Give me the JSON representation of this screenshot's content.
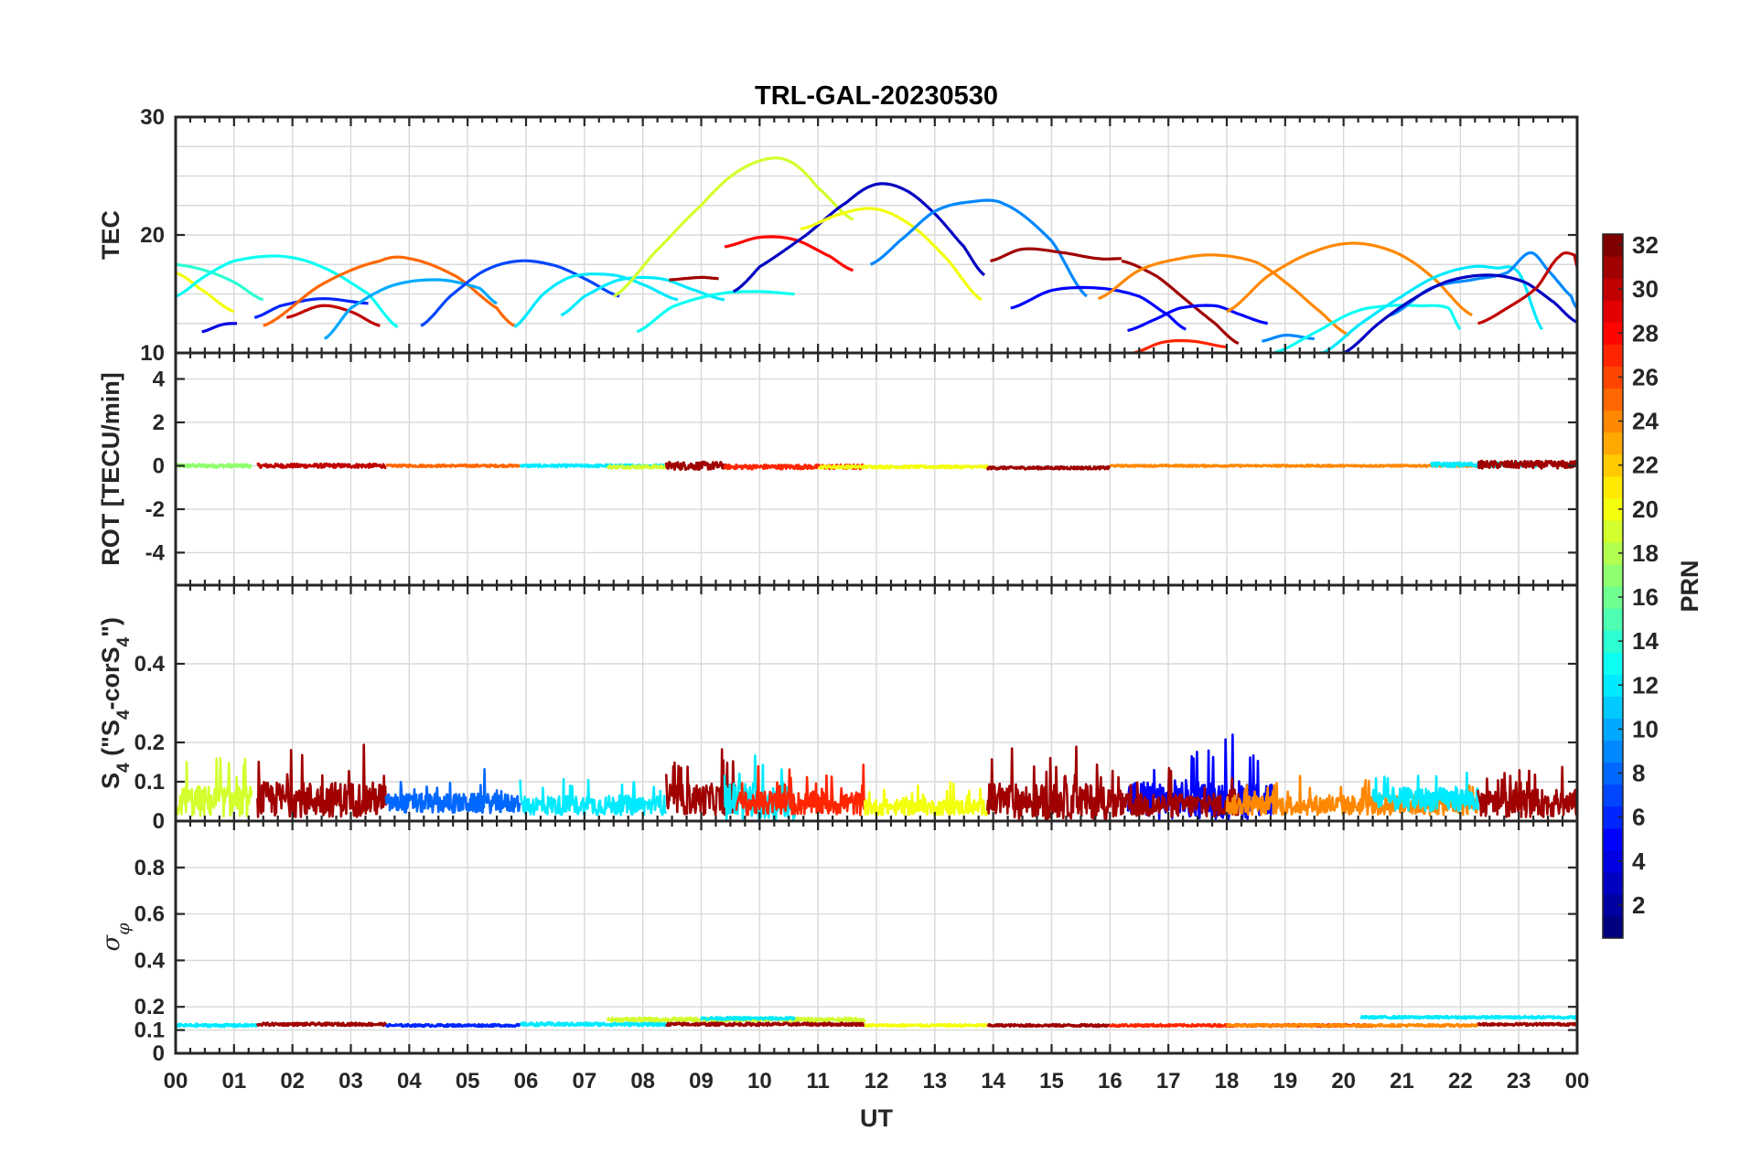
{
  "chart_data": {
    "type": "line",
    "title": "TRL-GAL-20230530",
    "xlabel": "UT",
    "x_tick_labels": [
      "00",
      "01",
      "02",
      "03",
      "04",
      "05",
      "06",
      "07",
      "08",
      "09",
      "10",
      "11",
      "12",
      "13",
      "14",
      "15",
      "16",
      "17",
      "18",
      "19",
      "20",
      "21",
      "22",
      "23",
      "00"
    ],
    "xlim_hours": [
      0,
      24
    ],
    "colorbar": {
      "label": "PRN",
      "range": [
        1,
        32
      ],
      "tick_labels": [
        "2",
        "4",
        "6",
        "8",
        "10",
        "12",
        "14",
        "16",
        "18",
        "20",
        "22",
        "24",
        "26",
        "28",
        "30",
        "32"
      ],
      "colormap": "jet"
    },
    "panels": [
      {
        "name": "tec",
        "ylabel": "TEC",
        "ylim": [
          10,
          30
        ],
        "y_tick_labels": [
          "10",
          "20",
          "30"
        ],
        "series": [
          {
            "prn": 20,
            "x": [
              0.0,
              0.4,
              1.0
            ],
            "y": [
              16.8,
              15.5,
              13.5
            ]
          },
          {
            "prn": 14,
            "x": [
              0.0,
              0.5,
              1.0,
              1.5
            ],
            "y": [
              17.5,
              17.0,
              16.0,
              14.5
            ]
          },
          {
            "prn": 13,
            "x": [
              0.0,
              0.5,
              1.0,
              1.8,
              2.5,
              3.3,
              3.8
            ],
            "y": [
              14.8,
              16.5,
              17.8,
              18.2,
              17.3,
              15.0,
              12.2
            ]
          },
          {
            "prn": 4,
            "x": [
              0.45,
              0.8,
              1.05
            ],
            "y": [
              11.8,
              12.4,
              12.5
            ]
          },
          {
            "prn": 6,
            "x": [
              1.35,
              1.8,
              2.5,
              3.3
            ],
            "y": [
              13.0,
              14.0,
              14.6,
              14.2
            ]
          },
          {
            "prn": 30,
            "x": [
              1.9,
              2.5,
              3.0,
              3.5
            ],
            "y": [
              13.0,
              14.0,
              13.5,
              12.3
            ]
          },
          {
            "prn": 25,
            "x": [
              1.5,
              2.5,
              3.5,
              4.0,
              4.8,
              5.5,
              5.8
            ],
            "y": [
              12.3,
              15.8,
              17.8,
              18.0,
              16.5,
              13.8,
              12.3
            ]
          },
          {
            "prn": 10,
            "x": [
              2.55,
              3.0,
              3.7,
              4.5,
              5.2,
              5.5
            ],
            "y": [
              11.2,
              13.8,
              15.7,
              16.2,
              15.5,
              14.2
            ]
          },
          {
            "prn": 7,
            "x": [
              4.2,
              4.7,
              5.3,
              5.9,
              6.5,
              7.0,
              7.6
            ],
            "y": [
              12.3,
              14.8,
              17.0,
              17.8,
              17.4,
              16.3,
              14.8
            ]
          },
          {
            "prn": 12,
            "x": [
              5.8,
              6.3,
              6.8,
              7.5,
              8.0,
              8.6
            ],
            "y": [
              12.2,
              15.0,
              16.5,
              16.6,
              15.8,
              14.5
            ]
          },
          {
            "prn": 12,
            "x": [
              6.6,
              7.0,
              7.6,
              8.3,
              8.9,
              9.4
            ],
            "y": [
              13.2,
              14.8,
              16.2,
              16.3,
              15.3,
              14.5
            ]
          },
          {
            "prn": 13,
            "x": [
              7.9,
              8.5,
              9.3,
              10.0,
              10.6
            ],
            "y": [
              11.8,
              13.9,
              15.0,
              15.2,
              15.0
            ]
          },
          {
            "prn": 19,
            "x": [
              7.5,
              8.2,
              9.0,
              9.6,
              10.2,
              10.6,
              11.0,
              11.6
            ],
            "y": [
              14.8,
              18.5,
              22.5,
              25.3,
              26.5,
              26.0,
              24.0,
              21.3
            ]
          },
          {
            "prn": 31,
            "x": [
              8.45,
              9.0,
              9.3
            ],
            "y": [
              16.2,
              16.4,
              16.3
            ]
          },
          {
            "prn": 28,
            "x": [
              9.4,
              10.0,
              10.6,
              11.2,
              11.6
            ],
            "y": [
              19.0,
              19.8,
              19.6,
              18.2,
              17.0
            ]
          },
          {
            "prn": 3,
            "x": [
              9.55,
              10.0,
              10.8,
              11.5,
              12.0,
              12.5,
              13.0,
              13.5,
              13.85
            ],
            "y": [
              15.2,
              17.3,
              20.0,
              22.8,
              24.3,
              23.8,
              21.8,
              19.0,
              16.6
            ]
          },
          {
            "prn": 20,
            "x": [
              10.7,
              11.4,
              12.0,
              12.6,
              13.2,
              13.8
            ],
            "y": [
              20.5,
              21.8,
              22.2,
              20.8,
              18.0,
              14.5
            ]
          },
          {
            "prn": 9,
            "x": [
              11.9,
              12.4,
              13.0,
              13.6,
              14.2,
              15.0,
              15.6
            ],
            "y": [
              17.5,
              19.5,
              22.0,
              22.8,
              22.6,
              19.5,
              14.8
            ]
          },
          {
            "prn": 31,
            "x": [
              13.95,
              14.5,
              15.2,
              15.8,
              16.2
            ],
            "y": [
              17.8,
              18.8,
              18.5,
              18.0,
              18.0
            ]
          },
          {
            "prn": 31,
            "x": [
              16.2,
              16.8,
              17.3,
              17.8,
              18.2
            ],
            "y": [
              17.8,
              16.5,
              14.5,
              12.5,
              10.8
            ]
          },
          {
            "prn": 5,
            "x": [
              14.3,
              15.0,
              15.8,
              16.5,
              17.0,
              17.3
            ],
            "y": [
              13.8,
              15.3,
              15.5,
              14.8,
              13.2,
              12.0
            ]
          },
          {
            "prn": 24,
            "x": [
              15.8,
              16.5,
              17.2,
              17.8,
              18.5,
              19.0,
              19.6,
              20.1
            ],
            "y": [
              14.6,
              17.0,
              18.0,
              18.3,
              17.7,
              16.0,
              13.5,
              11.5
            ]
          },
          {
            "prn": 5,
            "x": [
              16.3,
              16.8,
              17.2,
              17.8,
              18.2,
              18.7
            ],
            "y": [
              11.9,
              12.9,
              13.8,
              14.0,
              13.3,
              12.5
            ]
          },
          {
            "prn": 27,
            "x": [
              16.4,
              16.9,
              17.4,
              18.0
            ],
            "y": [
              10.0,
              10.9,
              11.0,
              10.5
            ]
          },
          {
            "prn": 24,
            "x": [
              18.0,
              18.7,
              19.5,
              20.2,
              20.9,
              21.5,
              22.2
            ],
            "y": [
              13.5,
              16.5,
              18.6,
              19.3,
              18.5,
              16.5,
              13.2
            ]
          },
          {
            "prn": 9,
            "x": [
              18.6,
              19.0,
              19.5
            ],
            "y": [
              11.0,
              11.5,
              11.2
            ]
          },
          {
            "prn": 13,
            "x": [
              18.8,
              19.5,
              20.2,
              20.8,
              21.3,
              21.8,
              22.0
            ],
            "y": [
              10.0,
              11.7,
              13.5,
              14.0,
              14.0,
              13.8,
              12.0
            ]
          },
          {
            "prn": 12,
            "x": [
              19.6,
              20.3,
              21.0,
              21.6,
              22.2,
              22.6,
              23.0,
              23.4
            ],
            "y": [
              9.9,
              12.5,
              14.8,
              16.5,
              17.3,
              17.2,
              16.8,
              12.0
            ]
          },
          {
            "prn": 9,
            "x": [
              20.8,
              21.5,
              22.2,
              22.8,
              23.2,
              23.5,
              23.9,
              24.0
            ],
            "y": [
              13.2,
              15.5,
              16.2,
              16.8,
              18.5,
              17.0,
              14.8,
              13.8
            ]
          },
          {
            "prn": 3,
            "x": [
              20.0,
              20.6,
              21.2,
              21.8,
              22.5,
              23.1,
              23.6,
              24.0
            ],
            "y": [
              10.0,
              12.5,
              14.6,
              16.1,
              16.6,
              16.0,
              14.3,
              12.6
            ]
          },
          {
            "prn": 30,
            "x": [
              22.3,
              22.8,
              23.3,
              23.7,
              23.95,
              24.0
            ],
            "y": [
              12.5,
              13.8,
              15.5,
              18.2,
              18.3,
              17.3
            ]
          }
        ]
      },
      {
        "name": "rot",
        "ylabel": "ROT [TECU/min]",
        "ylim": [
          -5.5,
          5.2
        ],
        "y_tick_labels": [
          "-4",
          "-2",
          "0",
          "2",
          "4"
        ],
        "series": [
          {
            "prn": 17,
            "x_range": [
              0.0,
              1.3
            ],
            "level": 0.0,
            "noise": 0.08
          },
          {
            "prn": 30,
            "x_range": [
              1.4,
              3.6
            ],
            "level": 0.0,
            "noise": 0.09
          },
          {
            "prn": 25,
            "x_range": [
              3.6,
              5.9
            ],
            "level": 0.0,
            "noise": 0.05
          },
          {
            "prn": 12,
            "x_range": [
              5.9,
              8.4
            ],
            "level": 0.0,
            "noise": 0.06
          },
          {
            "prn": 19,
            "x_range": [
              7.4,
              8.4
            ],
            "level": -0.05,
            "noise": 0.07
          },
          {
            "prn": 31,
            "x_range": [
              8.4,
              9.4
            ],
            "level": 0.0,
            "noise": 0.18
          },
          {
            "prn": 27,
            "x_range": [
              9.4,
              11.8
            ],
            "level": -0.05,
            "noise": 0.1
          },
          {
            "prn": 20,
            "x_range": [
              11.0,
              13.9
            ],
            "level": -0.05,
            "noise": 0.06
          },
          {
            "prn": 31,
            "x_range": [
              13.9,
              16.0
            ],
            "level": -0.1,
            "noise": 0.06
          },
          {
            "prn": 24,
            "x_range": [
              16.0,
              22.3
            ],
            "level": 0.0,
            "noise": 0.04
          },
          {
            "prn": 12,
            "x_range": [
              21.5,
              23.3
            ],
            "level": 0.05,
            "noise": 0.1
          },
          {
            "prn": 31,
            "x_range": [
              22.3,
              24.0
            ],
            "level": 0.05,
            "noise": 0.17
          }
        ]
      },
      {
        "name": "s4",
        "ylabel": "S4 (\"S4-corS4\")",
        "ylim": [
          0,
          0.6
        ],
        "y_tick_labels": [
          "0",
          "0.1",
          "0.2",
          "0.4"
        ],
        "series": [
          {
            "prn": 19,
            "x_range": [
              0.0,
              1.3
            ],
            "level": 0.05,
            "noise": 0.04
          },
          {
            "prn": 31,
            "x_range": [
              1.4,
              3.6
            ],
            "level": 0.055,
            "noise": 0.045
          },
          {
            "prn": 8,
            "x_range": [
              3.6,
              5.9
            ],
            "level": 0.045,
            "noise": 0.025
          },
          {
            "prn": 12,
            "x_range": [
              5.9,
              8.4
            ],
            "level": 0.04,
            "noise": 0.025
          },
          {
            "prn": 31,
            "x_range": [
              8.4,
              9.6
            ],
            "level": 0.055,
            "noise": 0.04
          },
          {
            "prn": 12,
            "x_range": [
              9.4,
              10.6
            ],
            "level": 0.05,
            "noise": 0.05
          },
          {
            "prn": 27,
            "x_range": [
              9.6,
              11.8
            ],
            "level": 0.045,
            "noise": 0.03
          },
          {
            "prn": 20,
            "x_range": [
              11.8,
              13.9
            ],
            "level": 0.035,
            "noise": 0.02
          },
          {
            "prn": 31,
            "x_range": [
              13.9,
              16.0
            ],
            "level": 0.05,
            "noise": 0.045
          },
          {
            "prn": 5,
            "x_range": [
              16.3,
              18.8
            ],
            "level": 0.055,
            "noise": 0.05
          },
          {
            "prn": 31,
            "x_range": [
              16.0,
              18.2
            ],
            "level": 0.04,
            "noise": 0.03
          },
          {
            "prn": 24,
            "x_range": [
              18.0,
              22.3
            ],
            "level": 0.04,
            "noise": 0.025
          },
          {
            "prn": 12,
            "x_range": [
              20.5,
              22.3
            ],
            "level": 0.055,
            "noise": 0.03
          },
          {
            "prn": 31,
            "x_range": [
              22.3,
              24.0
            ],
            "level": 0.045,
            "noise": 0.035
          }
        ]
      },
      {
        "name": "sigma_phi",
        "ylabel": "σ_φ",
        "ylim": [
          0,
          1
        ],
        "y_tick_labels": [
          "0",
          "0.1",
          "0.2",
          "0.4",
          "0.6",
          "0.8"
        ],
        "series": [
          {
            "prn": 12,
            "x_range": [
              0.0,
              1.4
            ],
            "level": 0.12,
            "noise": 0.006
          },
          {
            "prn": 31,
            "x_range": [
              1.4,
              3.6
            ],
            "level": 0.125,
            "noise": 0.006
          },
          {
            "prn": 6,
            "x_range": [
              3.6,
              5.9
            ],
            "level": 0.12,
            "noise": 0.005
          },
          {
            "prn": 12,
            "x_range": [
              5.9,
              8.4
            ],
            "level": 0.125,
            "noise": 0.007
          },
          {
            "prn": 19,
            "x_range": [
              7.4,
              11.8
            ],
            "level": 0.145,
            "noise": 0.008
          },
          {
            "prn": 12,
            "x_range": [
              9.0,
              10.6
            ],
            "level": 0.15,
            "noise": 0.006
          },
          {
            "prn": 31,
            "x_range": [
              8.4,
              11.8
            ],
            "level": 0.125,
            "noise": 0.006
          },
          {
            "prn": 20,
            "x_range": [
              11.8,
              13.9
            ],
            "level": 0.12,
            "noise": 0.005
          },
          {
            "prn": 31,
            "x_range": [
              13.9,
              16.0
            ],
            "level": 0.12,
            "noise": 0.005
          },
          {
            "prn": 27,
            "x_range": [
              16.0,
              20.5
            ],
            "level": 0.12,
            "noise": 0.005
          },
          {
            "prn": 24,
            "x_range": [
              18.0,
              22.3
            ],
            "level": 0.12,
            "noise": 0.005
          },
          {
            "prn": 12,
            "x_range": [
              20.3,
              24.0
            ],
            "level": 0.155,
            "noise": 0.005
          },
          {
            "prn": 31,
            "x_range": [
              22.3,
              24.0
            ],
            "level": 0.125,
            "noise": 0.005
          }
        ]
      }
    ]
  }
}
